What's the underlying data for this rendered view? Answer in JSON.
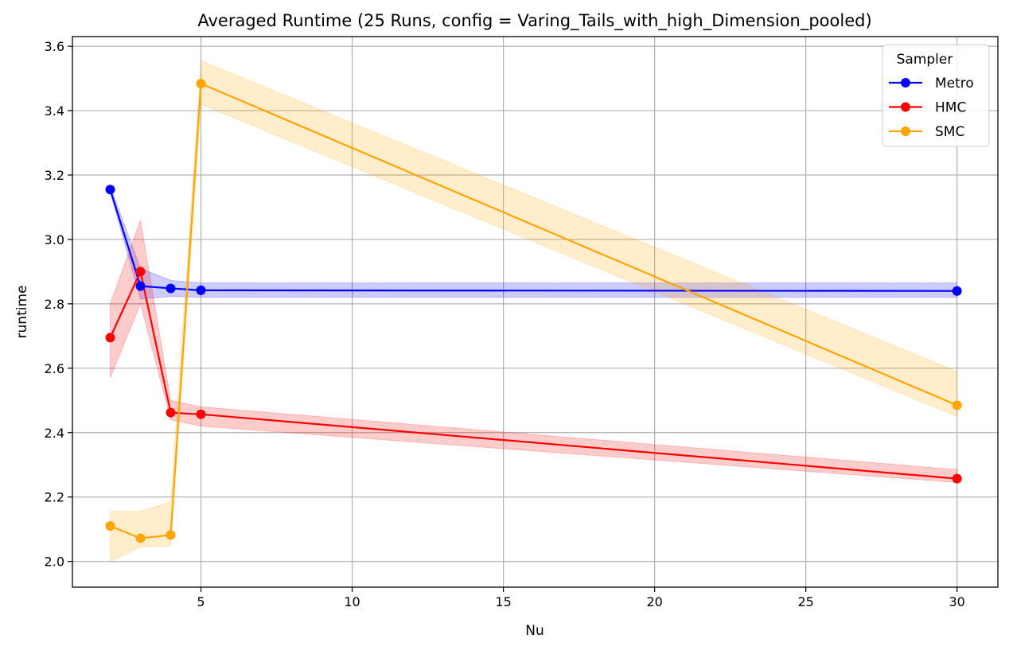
{
  "chart_data": {
    "type": "line",
    "title": "Averaged Runtime (25 Runs, config = Varing_Tails_with_high_Dimension_pooled)",
    "xlabel": "Nu",
    "ylabel": "runtime",
    "xlim": [
      0.75,
      31.35
    ],
    "ylim": [
      1.92,
      3.63
    ],
    "x_ticks": [
      5,
      10,
      15,
      20,
      25,
      30
    ],
    "y_ticks": [
      2.0,
      2.2,
      2.4,
      2.6,
      2.8,
      3.0,
      3.2,
      3.4,
      3.6
    ],
    "x_tick_labels": [
      "5",
      "10",
      "15",
      "20",
      "25",
      "30"
    ],
    "y_tick_labels": [
      "2.0",
      "2.2",
      "2.4",
      "2.6",
      "2.8",
      "3.0",
      "3.2",
      "3.4",
      "3.6"
    ],
    "grid": true,
    "legend": {
      "title": "Sampler",
      "position": "top-right"
    },
    "x": [
      2,
      3,
      4,
      5,
      30
    ],
    "series": [
      {
        "name": "Metro",
        "color": "#0000ff",
        "values": [
          3.155,
          2.855,
          2.848,
          2.842,
          2.84
        ],
        "lower": [
          3.145,
          2.815,
          2.823,
          2.82,
          2.82
        ],
        "upper": [
          3.165,
          2.91,
          2.873,
          2.865,
          2.865
        ]
      },
      {
        "name": "HMC",
        "color": "#ff0000",
        "values": [
          2.695,
          2.9,
          2.462,
          2.457,
          2.257
        ],
        "lower": [
          2.57,
          2.8,
          2.44,
          2.42,
          2.245
        ],
        "upper": [
          2.8,
          3.06,
          2.5,
          2.48,
          2.285
        ]
      },
      {
        "name": "SMC",
        "color": "#ffa500",
        "values": [
          2.11,
          2.072,
          2.082,
          3.484,
          2.485
        ],
        "lower": [
          2.0,
          2.045,
          2.048,
          3.42,
          2.45
        ],
        "upper": [
          2.155,
          2.155,
          2.185,
          3.555,
          2.59
        ]
      }
    ]
  }
}
